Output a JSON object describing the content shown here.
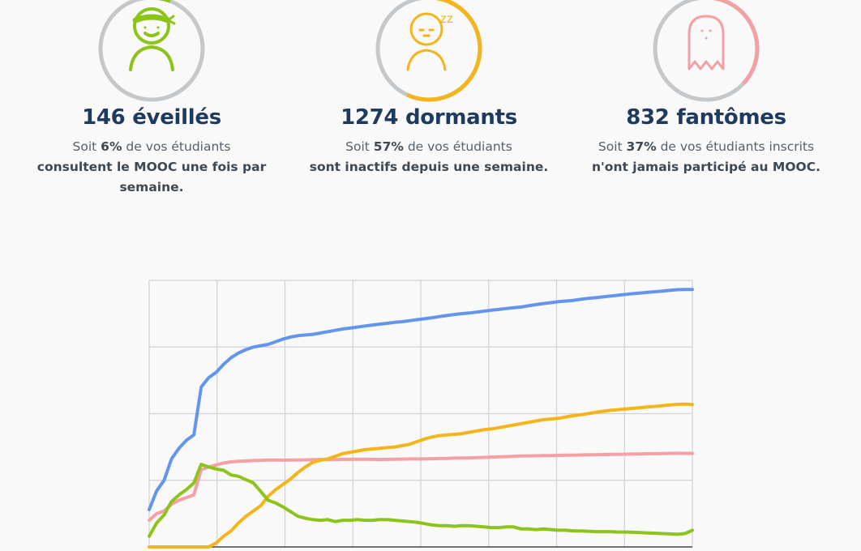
{
  "stats": [
    {
      "id": "awake",
      "count_text": "146 éveillés",
      "desc_prefix": "Soit ",
      "percent_text": "6%",
      "desc_middle": " de vos étudiants",
      "desc_bold": "consultent le MOOC une fois par semaine.",
      "fraction": 0.06,
      "color": "#8cc41a",
      "icon": "bandana-person-icon"
    },
    {
      "id": "dormant",
      "count_text": "1274 dormants",
      "desc_prefix": "Soit ",
      "percent_text": "57%",
      "desc_middle": " de vos étudiants",
      "desc_bold": "sont inactifs depuis une semaine.",
      "fraction": 0.57,
      "color": "#f5b419",
      "icon": "sleeping-person-icon",
      "icon_text": "zz"
    },
    {
      "id": "ghost",
      "count_text": "832 fantômes",
      "desc_prefix": "Soit ",
      "percent_text": "37%",
      "desc_middle": " de vos étudiants inscrits",
      "desc_bold": "n'ont jamais participé au MOOC.",
      "fraction": 0.37,
      "color": "#f4a0a4",
      "icon": "ghost-icon"
    }
  ],
  "colors": {
    "ring_track": "#c5c8cb",
    "grid": "#d0d2d4",
    "axis": "#444444"
  },
  "chart_data": {
    "type": "line",
    "title": "",
    "xlabel": "",
    "ylabel": "",
    "grid": true,
    "legend": "none",
    "x": [
      0,
      1,
      2,
      3,
      4,
      5,
      6,
      7,
      8,
      9,
      10,
      11,
      12,
      13,
      14,
      15,
      16,
      17,
      18,
      19,
      20,
      21,
      22,
      23,
      24,
      25,
      26,
      27,
      28,
      29,
      30,
      31,
      32,
      33,
      34,
      35,
      36,
      37,
      38,
      39,
      40,
      41,
      42,
      43,
      44,
      45,
      46,
      47,
      48,
      49,
      50,
      51,
      52,
      53,
      54,
      55,
      56,
      57,
      58,
      59,
      60,
      61,
      62,
      63,
      64,
      65,
      66,
      67,
      68,
      69,
      70,
      71,
      72,
      73
    ],
    "xlim": [
      0,
      73
    ],
    "ylim": [
      0,
      2000
    ],
    "series": [
      {
        "color": "#6495ed",
        "values": [
          280,
          420,
          500,
          660,
          740,
          800,
          840,
          1200,
          1270,
          1310,
          1370,
          1420,
          1455,
          1480,
          1500,
          1510,
          1520,
          1540,
          1560,
          1575,
          1585,
          1590,
          1595,
          1605,
          1615,
          1625,
          1635,
          1642,
          1650,
          1658,
          1665,
          1672,
          1678,
          1685,
          1690,
          1697,
          1705,
          1712,
          1720,
          1728,
          1736,
          1744,
          1750,
          1755,
          1762,
          1769,
          1776,
          1782,
          1789,
          1795,
          1800,
          1810,
          1818,
          1826,
          1833,
          1840,
          1845,
          1850,
          1858,
          1865,
          1870,
          1876,
          1882,
          1888,
          1895,
          1900,
          1905,
          1910,
          1915,
          1920,
          1925,
          1930,
          1932,
          1932
        ]
      },
      {
        "color": "#f4a0a4",
        "values": [
          200,
          250,
          270,
          320,
          350,
          370,
          390,
          580,
          600,
          615,
          630,
          638,
          643,
          645,
          648,
          650,
          652,
          652,
          651,
          652,
          653,
          653,
          655,
          656,
          656,
          655,
          657,
          657,
          658,
          658,
          657,
          656,
          657,
          658,
          659,
          660,
          660,
          661,
          662,
          663,
          664,
          666,
          667,
          668,
          670,
          672,
          674,
          676,
          678,
          680,
          682,
          683,
          684,
          685,
          686,
          687,
          688,
          689,
          690,
          691,
          692,
          693,
          694,
          695,
          696,
          697,
          698,
          700,
          700,
          701,
          702,
          703,
          702,
          702
        ]
      },
      {
        "color": "#f5b419",
        "values": [
          0,
          0,
          0,
          0,
          0,
          0,
          0,
          0,
          0,
          30,
          80,
          120,
          180,
          230,
          270,
          310,
          380,
          430,
          470,
          510,
          560,
          600,
          635,
          650,
          660,
          680,
          700,
          710,
          720,
          730,
          735,
          740,
          745,
          750,
          760,
          770,
          790,
          810,
          825,
          835,
          840,
          845,
          850,
          860,
          870,
          880,
          885,
          895,
          905,
          915,
          925,
          935,
          945,
          955,
          960,
          965,
          975,
          985,
          992,
          1000,
          1010,
          1018,
          1025,
          1030,
          1035,
          1040,
          1045,
          1050,
          1055,
          1060,
          1065,
          1070,
          1072,
          1068
        ]
      },
      {
        "color": "#8cc41a",
        "values": [
          80,
          180,
          240,
          340,
          390,
          430,
          480,
          620,
          600,
          585,
          575,
          540,
          530,
          505,
          480,
          415,
          350,
          330,
          300,
          265,
          230,
          215,
          205,
          200,
          205,
          190,
          200,
          200,
          205,
          200,
          200,
          205,
          205,
          200,
          195,
          190,
          185,
          175,
          165,
          160,
          160,
          155,
          160,
          160,
          155,
          150,
          145,
          145,
          150,
          150,
          135,
          135,
          130,
          135,
          130,
          125,
          125,
          120,
          120,
          118,
          115,
          115,
          115,
          112,
          112,
          110,
          108,
          105,
          103,
          100,
          98,
          95,
          100,
          125
        ]
      }
    ]
  }
}
